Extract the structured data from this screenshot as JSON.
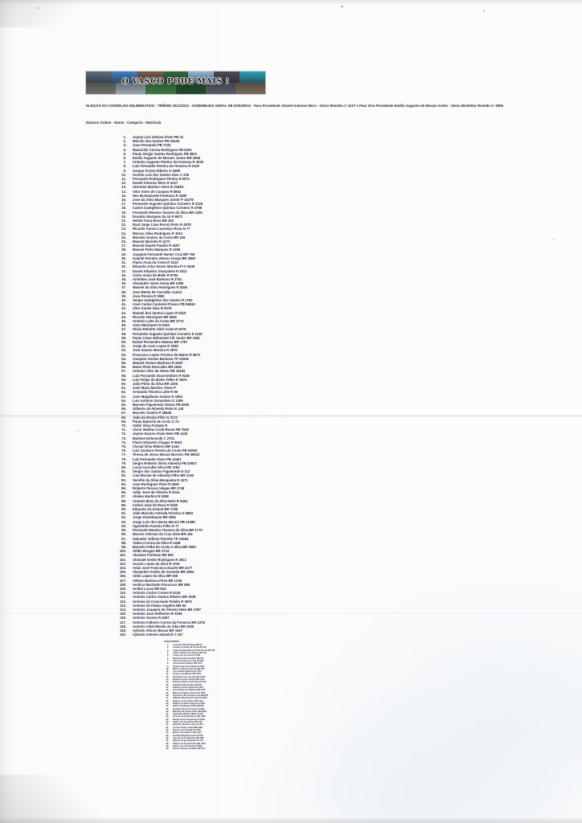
{
  "banner": {
    "slogan": "O VASCO PODE MAIS !",
    "photo_colors": [
      "#5a6b7d",
      "#3f7fc0",
      "#7a5a46",
      "#2e6b3a",
      "#8fb6d8",
      "#4d4a52",
      "#2aa0b5",
      "#6d7468",
      "#9aa4ac",
      "#3a7a3f",
      "#1e4d2b",
      "#565d66",
      "#7d6b58"
    ]
  },
  "title": "ELEIÇÃO DO CONSELHO DELIBERATIVO - TRIÊNIO 2011/2013 - ASSEMBLÉIA GERAL DE 02/04/2011 - Para Presidente: Daniel Antunes Mors - Sócio Remido nº 4127 e Para Vice Presidente Emílio Augusto de Morais Avelar - Sócio Benfeitor Remido nº 2506",
  "subtitle": "Número Ordem - Nome - Categoria - Matrícula",
  "main_list": [
    "Jayme Luiz Urbosa Alves PB 31",
    "Marcilo dos Santos PB 54245",
    "Jose Fernando PB 7233",
    "Mauricilio Correa Rodrigues PB 6291",
    "Paulo Sergio Santos Rodrigues PB 4801",
    "Emilio Augusto de Moraes Junior BR 2506",
    "Antonio Augusto Pereira da Fonseca R 3230",
    "Luiz Fernando Pereira da Fonseca R 5125",
    "Gaspar Furlan Ribeiro G 6368",
    "Aurelio Luiz dos Santos Dias C 236",
    "Fernando Rodrigues Pereira R 6071",
    "Daniel Antunes Mors R 4127",
    "Severino Martins Alves R 31829",
    "Vitor Alves de Campos R 5062",
    "Neo Bustamante Fontoura R 2498",
    "Jose da Silva Marques Junior P 15279",
    "Fernando Augusto Quintao Carneiro R 3128",
    "Carlos Gamgleton Quintao Carneiro R 3786",
    "Fernando Moreira Tavares da Silva BR 2305",
    "Evandro Marques da Sá P 8672",
    "Helmir Faria Rosa BR 263",
    "Raul Jorge Lima Ferraz Pinto R 4978",
    "Ricardo Amaro Lourenço Rosa N 77",
    "Marcos Silva Rodrigues R 3312",
    "Marcelo Gomes da Costa BR 439",
    "Manoel Marinho R 4170",
    "Manoel Duarte Patulin R 3207",
    "Manoel Pinto Marques R 1495",
    "Joaquim Fernando Nunes Cruz BR 769",
    "Gabriel Ferreira Veloso Araujo BR 2899",
    "Flavio Assa da Costa R 3213",
    "Eduardo Artur Neves Moreira P-O 3638",
    "Daniel Altamiro Gonçalves R 2512",
    "Celso Viana de Mello R 6794",
    "Aristides José Barbosa R 2761",
    "Alexandre Vieira Santa BR 1388",
    "Manoel da Silva Rodrigues R 5256",
    "Jose Bento de Carvalho Junior",
    "Jose Pereira R 3580",
    "Sergio Gamgleton dos Santos R 1792",
    "Jose Carlos Canhotal Franco PB 56844",
    "Vitor Kanler Dias R 5376",
    "Manoel dos Santos Lopes R 5410",
    "Ricardo Henriques BR 5082",
    "Antonio Leite da Costa BR 2774",
    "Jose Henriques R 5434",
    "Olivia Roberto Abib Costa R 5475",
    "Fernando Augusto Quintao Carneiro E 1130",
    "Paulo Cezar Mohamed Alli Junior BR 2481",
    "Rafael Fernandes Mateus BR 1787",
    "Jorge de Leon Lopes R 2930",
    "Jose Soares Moreira R 3976",
    "Francisco Lopes Ferreira de Matos R 5673",
    "Joaquim Gomes Barbosa TP 24043",
    "Manoel Gomes Barbosa R 2623",
    "Mario Pinto Roncalho BR 2549",
    "Antonio Vitor de Abreu PB 15183",
    "Luiz Fernando Gianristofaro R 9246",
    "Luiz Felipe da Motta Telles R 3876",
    "João Pinto da Silva BR 2205",
    "José Maria Martins Alves P",
    "Armando Teixeira Leite R 96",
    "Jose Magalhaes Santos R 1894",
    "Luis Antonio Gonsalves G 1495",
    "Marcelo Figueiredo Seixas PB 8260",
    "Gilberto de Almeida Pinto E 145",
    "Marcelo Taveira P 28548",
    "João da Rocha Filho G 3172",
    "Paulo Batocha de Assis G 74",
    "Valdir Silva Furtado R",
    "Victor Medina Croiti Rome PB 7526",
    "Jayme Soares Alves Neto PB 1443",
    "Marlene Dobrevski C 2751",
    "Flavio Eduardo Chagas R 5623",
    "Vismal Silva Ribeiro BR 1244",
    "Luiz Gustavo Pereira da Costa PB 53592",
    "Teresa de Jesus Morais Borrero PB 56523",
    "Luiz Fernando Alves PB 14401",
    "Sergio Roberto Vieira Almeida PB 40627",
    "Lucia Carvalho Silva PB 7283",
    "Sergio dos Santos Figueiredo E 112",
    "Lisa Woram de Almeida Filho BR 2149",
    "Serafim da Silva Mesquista R 1671",
    "Jose Rodrigues Pinto R 4529",
    "Roberto Pessoa Viegas BR 1748",
    "Adão José de Oliveira R 5314",
    "Abides Martins R 5298",
    "Antonio Braz da Silva Neto R 5454",
    "Carlos Jose de Rosa R 5248",
    "Eduardo do Amaral BR 1786",
    "João Marcelo Astrada Ferreira G 5883",
    "Jorge Kicembaum BR 2982",
    "Jorge Luis dos Neves Morais PB 21085",
    "Agostinho Favolra Filho E 77",
    "Fernando Moreira Tavares da Silva BR 1770",
    "Marcos Vinicius da Cruz Silva BR 432",
    "Salvador Velloso Perrella TP 21094",
    "Tadeu Correia da Silva R 2436",
    "Marcelo Fellal da Costa e Silva BR 2690",
    "Attilio Borges BR 2724",
    "Abrahao Fishman BR 953",
    "Abimael Kesler Rodrigues R 3812",
    "Acacio Lopes da Silva R 4781",
    "Adao Jose Francisco Duarte BR 2177",
    "Alexandre Kesler de Azevedo BR 2864",
    "Aildo Lopes da Silva BR 929",
    "Aillson Barbosa Pires BR 1238",
    "Amilcar Machado Francisco BR 586",
    "Anibal Lucas BR 815",
    "Antonio Carlos Correa R 5244",
    "Antonio Carlos Santos Ribeiro BR 1938",
    "Antonio da Conceição Patalio R 3575",
    "Antonio de Padua Angelim BR 84",
    "Antonio Joaquim de Oliveira Neto BR 2787",
    "Antonio Jace Delfonino R 3109",
    "Antonio Soares R 4067",
    "Antonio Falheiro Correa da Fonseca BR 1276",
    "Antonio Vidal Moulin da Silva BR 1605",
    "Aylindo Afonso Bovas BR 1547",
    "Aylindo Antonio Salvaioli C 247"
  ],
  "suplentes": {
    "heading": "SUPLENTES:",
    "entries": [
      "Leonardo PB Peringuel BR 31",
      "Leiedes de Sode da Costa BR 126",
      "Augusto Reginaldo da Silva Porcia BR 391",
      "Carlos Alberto dos Santos BR 421",
      "Jorge Luiz de Souza R 1182",
      "Manoel Pereira da Silva BR 764",
      "Antonio Carlos de Lima R 2318",
      "Jose Roberto Nunes BR 1473",
      "Paulo Cesar de Andrade R 3125",
      "Marcos Antonio Ferreira BR 528",
      "Luiz Claudio Barbosa R 1940",
      "Sergio Luiz Martins BR 2246",
      "Fernando Jose de Almeida R 873",
      "Ricardo Gomes Pereira BR 1651",
      "Eduardo Santos da Rocha R 2410",
      "Claudio Roberto Dias BR 935",
      "Roberto Carlos Moreira R 1287",
      "Joao Batista de Oliveira BR 2073",
      "Marcelo Augusto Teixeira R 1562",
      "Francisco das Chagas Lima BR 684",
      "Gilberto Nascimento Souza R 2921",
      "Rogerio Luiz Cardoso BR 1148",
      "Wagner da Silva Campos R 2534",
      "Nelson Rodrigues Filho BR 816",
      "Osvaldo Pinto da Cunha R 1395",
      "Mauricio de Castro Alves BR 2662",
      "Alexandre Ribeiro Matos R 947",
      "Vicente de Paula Ramos BR 1820",
      "Renato Cesar Figueiredo R 2209",
      "Valter Luiz Goncalves BR 733",
      "Hamilton Pereira Lopes R 1671",
      "Ari dos Santos Vieira BR 2485",
      "Edson Luiz Carvalho R 1056",
      "Milton Cesar Barros BR 1913",
      "Geraldo Magela Fontes R 2750",
      "Ivan da Costa Meirelles BR 598",
      "Alberto Jorge Machado R 2147",
      "Rubens de Souza Prado BR 1364",
      "Heitor Lins da Silveira R 2892",
      "Otavio Augusto de Mello BR 451"
    ]
  }
}
